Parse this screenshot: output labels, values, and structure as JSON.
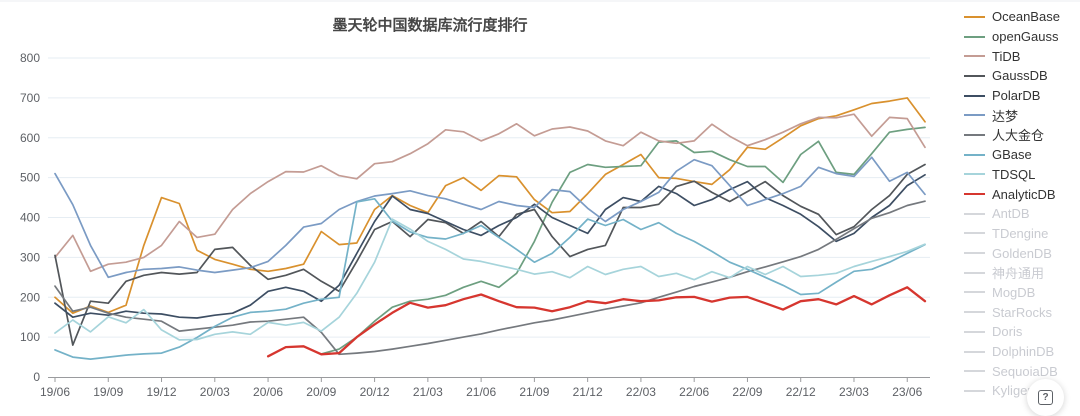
{
  "title": "墨天轮中国数据库流行度排行",
  "help_button": {
    "glyph": "?",
    "icon": "question-mark-icon"
  },
  "chart_data": {
    "type": "line",
    "title": "墨天轮中国数据库流行度排行",
    "x_tick_labels": [
      "19/06",
      "19/09",
      "19/12",
      "20/03",
      "20/06",
      "20/09",
      "20/12",
      "21/03",
      "21/06",
      "21/09",
      "21/12",
      "22/03",
      "22/06",
      "22/09",
      "22/12",
      "23/03",
      "23/06"
    ],
    "tick_every_months": 3,
    "points_per_series": 50,
    "ylim": [
      0,
      800
    ],
    "y_ticks": [
      0,
      100,
      200,
      300,
      400,
      500,
      600,
      700,
      800
    ],
    "grid": true,
    "legend_position": "right",
    "colors": {
      "grid": "#e6edf3",
      "axis": "#9a9b9e",
      "tick_label": "#5e6166",
      "disabled_legend": "#d5d7db"
    },
    "series": [
      {
        "name": "OceanBase",
        "color": "#d9912e",
        "enabled": true,
        "width": 1.7,
        "values": [
          200,
          160,
          178,
          162,
          180,
          330,
          450,
          435,
          318,
          295,
          283,
          270,
          265,
          272,
          283,
          365,
          332,
          336,
          420,
          455,
          430,
          412,
          480,
          500,
          468,
          505,
          502,
          445,
          412,
          415,
          460,
          508,
          533,
          558,
          500,
          498,
          490,
          483,
          520,
          576,
          571,
          600,
          630,
          648,
          655,
          670,
          686,
          692,
          700,
          640
        ]
      },
      {
        "name": "openGauss",
        "color": "#6d9f80",
        "enabled": true,
        "width": 1.7,
        "values": [
          null,
          null,
          null,
          null,
          null,
          null,
          null,
          null,
          null,
          null,
          null,
          null,
          null,
          null,
          null,
          58,
          70,
          100,
          140,
          175,
          190,
          195,
          205,
          225,
          240,
          225,
          260,
          340,
          438,
          513,
          533,
          526,
          528,
          530,
          589,
          592,
          563,
          566,
          545,
          528,
          528,
          488,
          558,
          591,
          513,
          508,
          560,
          614,
          621,
          626
        ]
      },
      {
        "name": "TiDB",
        "color": "#c49c94",
        "enabled": true,
        "width": 1.7,
        "values": [
          300,
          355,
          265,
          283,
          288,
          300,
          330,
          390,
          350,
          358,
          420,
          460,
          490,
          515,
          514,
          530,
          505,
          497,
          535,
          540,
          560,
          585,
          620,
          615,
          592,
          610,
          635,
          605,
          622,
          627,
          617,
          592,
          580,
          614,
          592,
          586,
          592,
          634,
          604,
          580,
          595,
          614,
          635,
          651,
          650,
          659,
          604,
          651,
          648,
          576
        ]
      },
      {
        "name": "GaussDB",
        "color": "#52565a",
        "enabled": true,
        "width": 1.7,
        "values": [
          305,
          80,
          190,
          185,
          240,
          255,
          262,
          258,
          262,
          320,
          325,
          280,
          245,
          255,
          270,
          240,
          215,
          290,
          370,
          390,
          352,
          395,
          387,
          360,
          390,
          352,
          408,
          420,
          352,
          302,
          320,
          330,
          425,
          425,
          433,
          478,
          491,
          463,
          440,
          465,
          490,
          455,
          428,
          408,
          357,
          377,
          420,
          455,
          508,
          533
        ]
      },
      {
        "name": "PolarDB",
        "color": "#3d4e63",
        "enabled": true,
        "width": 1.7,
        "values": [
          185,
          150,
          160,
          155,
          165,
          160,
          158,
          150,
          148,
          155,
          160,
          180,
          215,
          225,
          215,
          190,
          230,
          310,
          390,
          454,
          420,
          410,
          390,
          370,
          355,
          380,
          400,
          433,
          400,
          380,
          360,
          420,
          450,
          440,
          478,
          460,
          430,
          445,
          470,
          490,
          450,
          430,
          408,
          377,
          340,
          360,
          400,
          430,
          480,
          507
        ]
      },
      {
        "name": "达梦",
        "color": "#7b9bc4",
        "enabled": true,
        "width": 1.7,
        "values": [
          510,
          432,
          330,
          250,
          262,
          270,
          272,
          276,
          268,
          262,
          268,
          274,
          290,
          330,
          376,
          385,
          420,
          440,
          454,
          460,
          467,
          455,
          447,
          433,
          420,
          440,
          430,
          425,
          470,
          465,
          423,
          390,
          420,
          440,
          463,
          516,
          545,
          530,
          480,
          430,
          445,
          460,
          478,
          526,
          510,
          503,
          551,
          491,
          513,
          458
        ]
      },
      {
        "name": "人大金仓",
        "color": "#75797e",
        "enabled": true,
        "width": 1.7,
        "values": [
          228,
          165,
          175,
          160,
          150,
          145,
          140,
          115,
          120,
          125,
          130,
          138,
          140,
          145,
          150,
          112,
          57,
          60,
          64,
          70,
          77,
          84,
          92,
          100,
          108,
          118,
          127,
          136,
          143,
          152,
          161,
          170,
          178,
          186,
          200,
          213,
          227,
          238,
          250,
          264,
          276,
          289,
          302,
          320,
          345,
          372,
          398,
          412,
          430,
          441
        ]
      },
      {
        "name": "GBase",
        "color": "#74b2c8",
        "enabled": true,
        "width": 1.7,
        "values": [
          68,
          50,
          45,
          50,
          55,
          58,
          60,
          75,
          99,
          127,
          150,
          162,
          165,
          170,
          185,
          195,
          200,
          439,
          447,
          391,
          364,
          350,
          346,
          360,
          380,
          350,
          320,
          288,
          310,
          350,
          396,
          380,
          395,
          370,
          387,
          360,
          340,
          315,
          288,
          270,
          250,
          230,
          207,
          210,
          238,
          265,
          270,
          288,
          310,
          332
        ]
      },
      {
        "name": "TDSQL",
        "color": "#a6d4db",
        "enabled": true,
        "width": 1.7,
        "values": [
          110,
          143,
          113,
          151,
          136,
          169,
          118,
          93,
          94,
          107,
          113,
          107,
          137,
          130,
          137,
          115,
          150,
          210,
          288,
          396,
          371,
          340,
          320,
          296,
          290,
          280,
          270,
          258,
          264,
          249,
          277,
          257,
          270,
          277,
          252,
          260,
          244,
          264,
          249,
          277,
          257,
          277,
          252,
          255,
          260,
          277,
          290,
          302,
          315,
          333
        ]
      },
      {
        "name": "AnalyticDB",
        "color": "#d6362f",
        "enabled": true,
        "width": 2.3,
        "values": [
          null,
          null,
          null,
          null,
          null,
          null,
          null,
          null,
          null,
          null,
          null,
          null,
          52,
          75,
          77,
          57,
          60,
          100,
          132,
          161,
          186,
          174,
          180,
          195,
          207,
          190,
          175,
          174,
          165,
          175,
          190,
          185,
          195,
          190,
          192,
          200,
          201,
          189,
          199,
          201,
          185,
          169,
          190,
          195,
          182,
          203,
          182,
          205,
          225,
          190
        ]
      },
      {
        "name": "AntDB",
        "enabled": false,
        "values": []
      },
      {
        "name": "TDengine",
        "enabled": false,
        "values": []
      },
      {
        "name": "GoldenDB",
        "enabled": false,
        "values": []
      },
      {
        "name": "神舟通用",
        "enabled": false,
        "values": []
      },
      {
        "name": "MogDB",
        "enabled": false,
        "values": []
      },
      {
        "name": "StarRocks",
        "enabled": false,
        "values": []
      },
      {
        "name": "Doris",
        "enabled": false,
        "values": []
      },
      {
        "name": "DolphinDB",
        "enabled": false,
        "values": []
      },
      {
        "name": "SequoiaDB",
        "enabled": false,
        "values": []
      },
      {
        "name": "Kyligence",
        "enabled": false,
        "values": []
      }
    ]
  }
}
